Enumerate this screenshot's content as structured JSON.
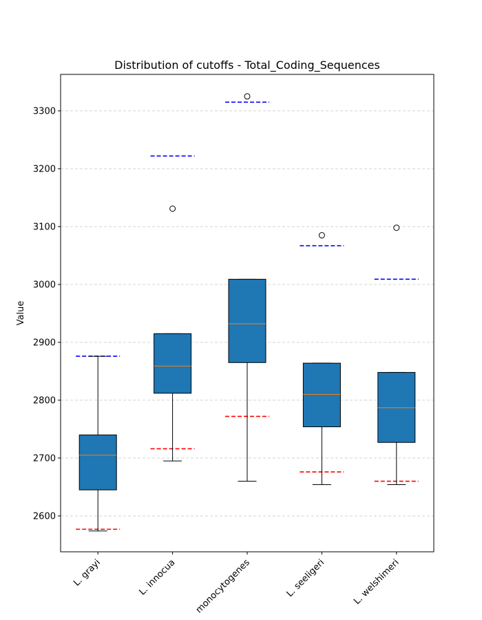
{
  "chart_data": {
    "type": "box",
    "title": "Distribution of cutoffs - Total_Coding_Sequences",
    "xlabel": "",
    "ylabel": "Value",
    "ylim": [
      2538,
      3363
    ],
    "yticks": [
      2600,
      2700,
      2800,
      2900,
      3000,
      3100,
      3200,
      3300
    ],
    "grid": "y-dashed",
    "categories": [
      "L. grayi",
      "L. innocua",
      "monocytogenes",
      "L. seeligeri",
      "L. welshimeri"
    ],
    "boxes": [
      {
        "whisker_low": 2574,
        "q1": 2645,
        "median": 2705,
        "q3": 2740,
        "whisker_high": 2876,
        "outliers": [],
        "upper_cutoff": 2876,
        "lower_cutoff": 2577
      },
      {
        "whisker_low": 2695,
        "q1": 2812,
        "median": 2859,
        "q3": 2915,
        "whisker_high": 2915,
        "outliers": [
          3131
        ],
        "upper_cutoff": 3222,
        "lower_cutoff": 2716
      },
      {
        "whisker_low": 2660,
        "q1": 2865,
        "median": 2932,
        "q3": 3009,
        "whisker_high": 3009,
        "outliers": [
          3325
        ],
        "upper_cutoff": 3315,
        "lower_cutoff": 2772
      },
      {
        "whisker_low": 2654,
        "q1": 2754,
        "median": 2810,
        "q3": 2864,
        "whisker_high": 2864,
        "outliers": [
          3085
        ],
        "upper_cutoff": 3067,
        "lower_cutoff": 2676
      },
      {
        "whisker_low": 2654,
        "q1": 2727,
        "median": 2787,
        "q3": 2848,
        "whisker_high": 2848,
        "outliers": [
          3098
        ],
        "upper_cutoff": 3009,
        "lower_cutoff": 2660
      }
    ],
    "colors": {
      "box_fill": "#1f77b4",
      "median": "#ff7f0e",
      "upper_cutoff": "#0000ff",
      "lower_cutoff": "#ff0000",
      "grid": "#cccccc"
    }
  }
}
